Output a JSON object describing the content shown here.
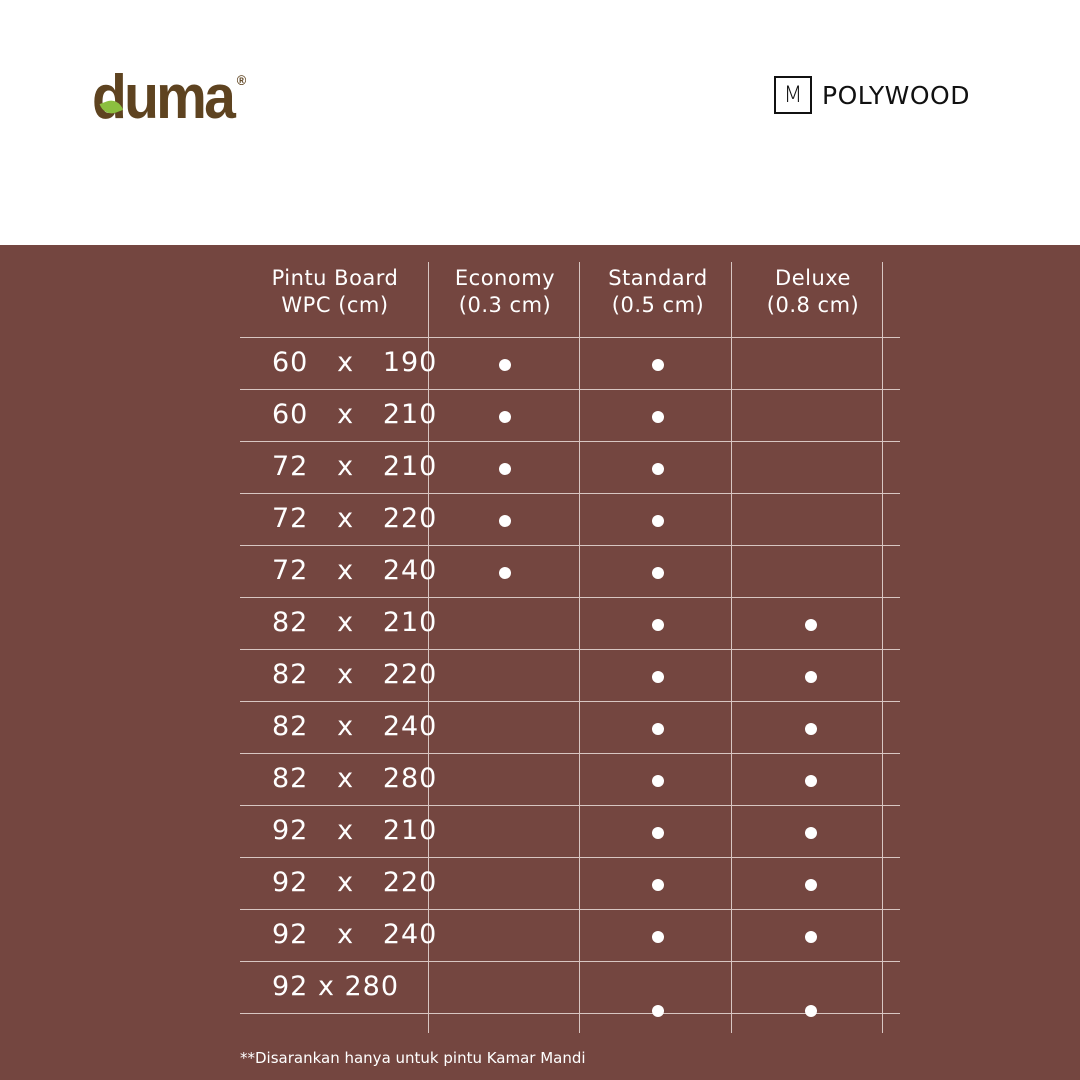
{
  "logos": {
    "left": "duma",
    "left_mark": "®",
    "right_mark": "M",
    "right": "POLYWOOD"
  },
  "colors": {
    "panel": "#744640",
    "duma": "#5e4320",
    "leaf": "#8cbf3f"
  },
  "table": {
    "headers": [
      {
        "line1": "Pintu Board",
        "line2": "WPC (cm)"
      },
      {
        "line1": "Economy",
        "line2": "(0.3 cm)"
      },
      {
        "line1": "Standard",
        "line2": "(0.5 cm)"
      },
      {
        "line1": "Deluxe",
        "line2": "(0.8 cm)"
      }
    ],
    "rows": [
      {
        "size": "60   x   190",
        "economy": true,
        "standard": true,
        "deluxe": false
      },
      {
        "size": "60   x   210",
        "economy": true,
        "standard": true,
        "deluxe": false
      },
      {
        "size": "72   x   210",
        "economy": true,
        "standard": true,
        "deluxe": false
      },
      {
        "size": "72   x   220",
        "economy": true,
        "standard": true,
        "deluxe": false
      },
      {
        "size": "72   x   240",
        "economy": true,
        "standard": true,
        "deluxe": false
      },
      {
        "size": "82   x   210",
        "economy": false,
        "standard": true,
        "deluxe": true
      },
      {
        "size": "82   x   220",
        "economy": false,
        "standard": true,
        "deluxe": true
      },
      {
        "size": "82   x   240",
        "economy": false,
        "standard": true,
        "deluxe": true
      },
      {
        "size": "82   x   280",
        "economy": false,
        "standard": true,
        "deluxe": true
      },
      {
        "size": "92   x   210",
        "economy": false,
        "standard": true,
        "deluxe": true
      },
      {
        "size": "92   x   220",
        "economy": false,
        "standard": true,
        "deluxe": true
      },
      {
        "size": "92   x   240",
        "economy": false,
        "standard": true,
        "deluxe": true
      },
      {
        "size": "92 x 280",
        "economy": false,
        "standard": true,
        "deluxe": true
      }
    ]
  },
  "footnote": "**Disarankan hanya untuk pintu Kamar Mandi"
}
